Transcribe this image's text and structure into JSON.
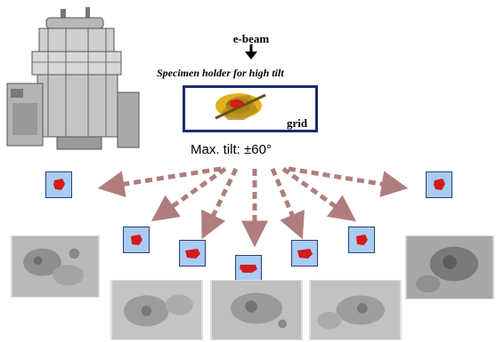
{
  "header": {
    "beam_label": "e-beam",
    "holder_label": "Specimen holder for high tilt",
    "grid_label": "grid",
    "tilt_label": "Max. tilt: ±60°"
  },
  "colors": {
    "tile_fill": "#a9ccf2",
    "tile_border": "#24407e",
    "specimen_red": "#d41a1a",
    "arrow": "#b07d7d",
    "grid_frame": "#1d2a6e"
  },
  "diagram": {
    "tilt_views": 7,
    "micrographs": 5
  }
}
